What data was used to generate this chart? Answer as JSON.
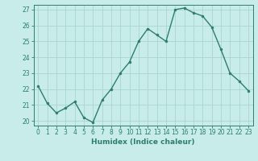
{
  "x": [
    0,
    1,
    2,
    3,
    4,
    5,
    6,
    7,
    8,
    9,
    10,
    11,
    12,
    13,
    14,
    15,
    16,
    17,
    18,
    19,
    20,
    21,
    22,
    23
  ],
  "y": [
    22.2,
    21.1,
    20.5,
    20.8,
    21.2,
    20.2,
    19.9,
    21.3,
    22.0,
    23.0,
    23.7,
    25.0,
    25.8,
    25.4,
    25.0,
    27.0,
    27.1,
    26.8,
    26.6,
    25.9,
    24.5,
    23.0,
    22.5,
    21.9
  ],
  "line_color": "#2e7d6e",
  "marker": "o",
  "markersize": 2.0,
  "linewidth": 1.0,
  "bg_color": "#c8ecea",
  "grid_color": "#a8d5d0",
  "xlabel": "Humidex (Indice chaleur)",
  "ylim_min": 19.7,
  "ylim_max": 27.3,
  "xlim_min": -0.5,
  "xlim_max": 23.5,
  "yticks": [
    20,
    21,
    22,
    23,
    24,
    25,
    26,
    27
  ],
  "xticks": [
    0,
    1,
    2,
    3,
    4,
    5,
    6,
    7,
    8,
    9,
    10,
    11,
    12,
    13,
    14,
    15,
    16,
    17,
    18,
    19,
    20,
    21,
    22,
    23
  ],
  "label_fontsize": 6.5,
  "tick_fontsize": 5.5
}
